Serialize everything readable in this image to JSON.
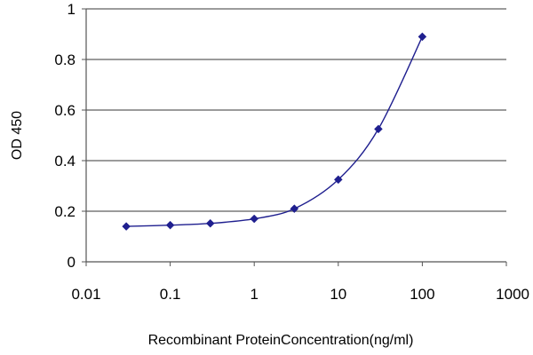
{
  "chart_data": {
    "type": "line",
    "title": "",
    "xlabel": "Recombinant ProteinConcentration(ng/ml)",
    "ylabel": "OD 450",
    "x_scale": "log",
    "xlim": [
      0.01,
      1000
    ],
    "ylim": [
      0,
      1
    ],
    "x_ticks": [
      "0.01",
      "0.1",
      "1",
      "10",
      "100",
      "1000"
    ],
    "y_ticks": [
      "0",
      "0.2",
      "0.4",
      "0.6",
      "0.8",
      "1"
    ],
    "grid": "horizontal",
    "legend": "none",
    "series": [
      {
        "color": "#1f1f8f",
        "marker": "diamond",
        "points": [
          {
            "x": 0.03,
            "y": 0.14
          },
          {
            "x": 0.1,
            "y": 0.145
          },
          {
            "x": 0.3,
            "y": 0.152
          },
          {
            "x": 1,
            "y": 0.17
          },
          {
            "x": 3,
            "y": 0.21
          },
          {
            "x": 10,
            "y": 0.325
          },
          {
            "x": 30,
            "y": 0.525
          },
          {
            "x": 100,
            "y": 0.89
          }
        ]
      }
    ]
  }
}
